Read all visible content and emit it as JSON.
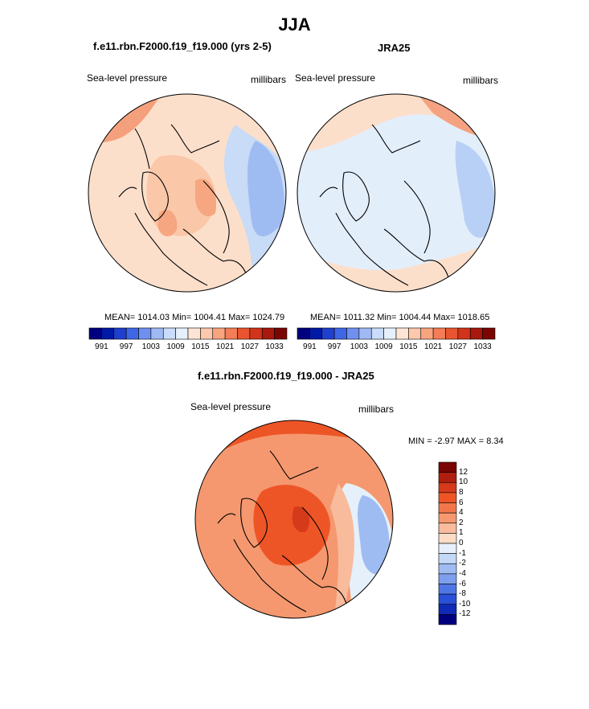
{
  "title": "JJA",
  "palette": {
    "full_colorbar": [
      "#00007f",
      "#0019a6",
      "#1f3fcc",
      "#3f66e5",
      "#6f90ef",
      "#9fb9f5",
      "#c9dcfa",
      "#e6f0fc",
      "#fde5d5",
      "#fbc9ac",
      "#f8a47e",
      "#f47c56",
      "#e9552f",
      "#d0341a",
      "#a8180c",
      "#7a0502"
    ],
    "diff_colorbar": [
      "#7a0502",
      "#b01f0e",
      "#d53a1a",
      "#ee5526",
      "#f2764a",
      "#f5986f",
      "#f8bb9c",
      "#fcdcc6",
      "#e5f0fb",
      "#c3d9f7",
      "#9fbcf2",
      "#7d9fee",
      "#4f76e5",
      "#2850d8",
      "#0f2bb6",
      "#00007f"
    ]
  },
  "panels": [
    {
      "id": "model",
      "title": "f.e11.rbn.F2000.f19_f19.000 (yrs 2-5)",
      "left_label": "Sea-level pressure",
      "right_label": "millibars",
      "stats": "MEAN= 1014.03  Min= 1004.41  Max= 1024.79",
      "colorbar_ticks": [
        "991",
        "997",
        "1003",
        "1009",
        "1015",
        "1021",
        "1027",
        "1033"
      ]
    },
    {
      "id": "obs",
      "title": "JRA25",
      "left_label": "Sea-level pressure",
      "right_label": "millibars",
      "stats": "MEAN= 1011.32  Min= 1004.44  Max= 1018.65",
      "colorbar_ticks": [
        "991",
        "997",
        "1003",
        "1009",
        "1015",
        "1021",
        "1027",
        "1033"
      ]
    }
  ],
  "difference": {
    "title": "f.e11.rbn.F2000.f19_f19.000 - JRA25",
    "left_label": "Sea-level pressure",
    "right_label": "millibars",
    "stats": "MIN =  -2.97 MAX =   8.34",
    "colorbar_ticks": [
      "12",
      "10",
      "8",
      "6",
      "4",
      "2",
      "1",
      "0",
      "-1",
      "-2",
      "-4",
      "-6",
      "-8",
      "-10",
      "-12"
    ]
  }
}
